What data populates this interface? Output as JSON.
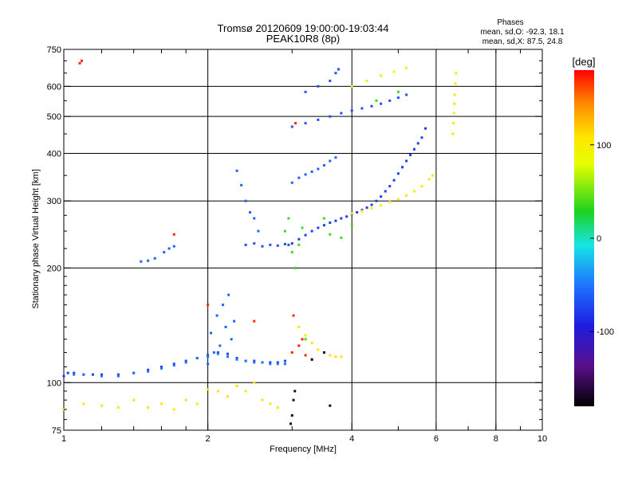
{
  "chart_data": {
    "type": "scatter",
    "title": "Tromsø 20120609 19:00:00-19:03:44",
    "subtitle": "PEAK10R8 (8p)",
    "xlabel": "Frequency [MHz]",
    "ylabel": "Stationary phase Virtual Height [km]",
    "x_scale": "log",
    "y_scale": "log",
    "xlim": [
      1,
      10
    ],
    "ylim": [
      75,
      750
    ],
    "x_ticks": [
      "1",
      "2",
      "4",
      "6",
      "8",
      "10"
    ],
    "x_tick_values": [
      1,
      2,
      4,
      6,
      8,
      10
    ],
    "y_ticks": [
      "75",
      "100",
      "200",
      "300",
      "400",
      "500",
      "600",
      "750"
    ],
    "y_tick_values": [
      75,
      100,
      200,
      300,
      400,
      500,
      600,
      750
    ],
    "grid": true,
    "stats": {
      "heading": "Phases",
      "line_o": "mean, sd,O: -92.3, 18.1",
      "line_x": "mean, sd,X: 87.5, 24.8"
    },
    "colorbar": {
      "label": "[deg]",
      "range": [
        -180,
        180
      ],
      "ticks": [
        "100",
        "0",
        "-100"
      ],
      "tick_values": [
        100,
        0,
        -100
      ]
    },
    "series": [
      {
        "color_phase": -110,
        "x": [
          1.0,
          1.02,
          1.05,
          1.1,
          1.15,
          1.2,
          1.3,
          1.4,
          1.5,
          1.6,
          1.7,
          1.8,
          1.9,
          2.0,
          2.1,
          2.2,
          2.3,
          2.4,
          2.5,
          2.6,
          2.7,
          2.8,
          2.9
        ],
        "y": [
          104,
          106,
          106,
          105,
          105,
          105,
          105,
          106,
          108,
          110,
          112,
          114,
          116,
          118,
          120,
          119,
          116,
          114,
          114,
          113,
          113,
          113,
          114
        ]
      },
      {
        "color_phase": -95,
        "x": [
          1.05,
          1.1,
          1.2,
          1.3,
          1.4,
          1.5,
          1.6,
          1.7,
          1.8,
          1.9,
          2.0,
          2.1,
          2.2,
          2.3,
          2.4,
          2.5,
          2.6,
          2.7,
          2.8,
          2.9
        ],
        "y": [
          105,
          105,
          104,
          104,
          106,
          107,
          109,
          111,
          113,
          116,
          117,
          119,
          117,
          115,
          114,
          113,
          113,
          112,
          112,
          112
        ]
      },
      {
        "color_phase": -100,
        "x": [
          2.0,
          2.03,
          2.06,
          2.09,
          2.12,
          2.15,
          2.18,
          2.21,
          2.24,
          2.27
        ],
        "y": [
          112,
          135,
          120,
          150,
          125,
          160,
          140,
          170,
          130,
          145
        ]
      },
      {
        "color_phase": -105,
        "x": [
          2.4,
          2.5,
          2.6,
          2.7,
          2.8,
          2.9,
          2.95
        ],
        "y": [
          230,
          232,
          228,
          230,
          229,
          231,
          230
        ]
      },
      {
        "color_phase": -100,
        "x": [
          2.3,
          2.35,
          2.4,
          2.45,
          2.5,
          2.55
        ],
        "y": [
          360,
          330,
          300,
          280,
          270,
          250
        ]
      },
      {
        "color_phase": -100,
        "x": [
          1.45,
          1.5,
          1.55,
          1.62,
          1.66,
          1.7
        ],
        "y": [
          208,
          209,
          212,
          220,
          225,
          228
        ]
      },
      {
        "color_phase": -110,
        "x": [
          3.0,
          3.1,
          3.2,
          3.3,
          3.4,
          3.5,
          3.6,
          3.7,
          3.8,
          3.9,
          4.0,
          4.1,
          4.2,
          4.3,
          4.4,
          4.5,
          4.6,
          4.7,
          4.8,
          4.9,
          5.0,
          5.1,
          5.2,
          5.3,
          5.4,
          5.5,
          5.6,
          5.7
        ],
        "y": [
          232,
          238,
          244,
          250,
          255,
          259,
          263,
          266,
          270,
          273,
          277,
          280,
          284,
          288,
          293,
          300,
          308,
          318,
          328,
          340,
          354,
          368,
          382,
          396,
          410,
          425,
          440,
          465
        ]
      },
      {
        "color_phase": 90,
        "x": [
          4.0,
          4.2,
          4.4,
          4.6,
          4.8,
          5.0,
          5.2,
          5.4,
          5.6,
          5.8,
          5.9
        ],
        "y": [
          278,
          282,
          287,
          292,
          298,
          303,
          310,
          318,
          328,
          342,
          350
        ]
      },
      {
        "color_phase": -105,
        "x": [
          3.0,
          3.2,
          3.4,
          3.6,
          3.8,
          4.0,
          4.2,
          4.4,
          4.6,
          4.8,
          5.0,
          5.2
        ],
        "y": [
          470,
          480,
          490,
          500,
          510,
          518,
          525,
          532,
          540,
          550,
          560,
          570
        ]
      },
      {
        "color_phase": -105,
        "x": [
          3.2,
          3.4,
          3.6,
          3.7,
          3.75
        ],
        "y": [
          580,
          600,
          620,
          650,
          665
        ]
      },
      {
        "color_phase": 90,
        "x": [
          4.0,
          4.3,
          4.6,
          4.9,
          5.2
        ],
        "y": [
          600,
          620,
          640,
          655,
          670
        ]
      },
      {
        "color_phase": 100,
        "x": [
          6.5,
          6.52,
          6.54,
          6.55,
          6.56,
          6.58,
          6.6
        ],
        "y": [
          450,
          480,
          510,
          540,
          570,
          610,
          650
        ]
      },
      {
        "color_phase": 100,
        "x": [
          3.1,
          3.2,
          3.3,
          3.4,
          3.5,
          3.6,
          3.7,
          3.8
        ],
        "y": [
          140,
          133,
          127,
          122,
          120,
          118,
          117,
          117
        ]
      },
      {
        "color_phase": -100,
        "x": [
          3.0,
          3.1,
          3.2,
          3.3,
          3.4,
          3.5,
          3.6,
          3.7
        ],
        "y": [
          335,
          345,
          352,
          358,
          364,
          372,
          382,
          390
        ]
      },
      {
        "color_phase": 100,
        "x": [
          1.0,
          1.1,
          1.2,
          1.3,
          1.4,
          1.5,
          1.6,
          1.7,
          1.8,
          1.9,
          2.0,
          2.1,
          2.2,
          2.3,
          2.4,
          2.5,
          2.6,
          2.7,
          2.8
        ],
        "y": [
          85,
          88,
          87,
          86,
          90,
          86,
          88,
          85,
          90,
          88,
          96,
          95,
          92,
          98,
          95,
          100,
          90,
          88,
          86
        ]
      },
      {
        "color_phase": 170,
        "x": [
          1.08,
          1.09,
          1.7,
          2.0,
          2.5,
          3.0,
          3.02,
          3.05,
          3.1,
          3.15,
          3.2,
          3.3
        ],
        "y": [
          690,
          700,
          245,
          160,
          145,
          120,
          150,
          480,
          125,
          130,
          118,
          115
        ]
      },
      {
        "color_phase": -170,
        "x": [
          2.98,
          3.0,
          3.02,
          3.04,
          3.3,
          3.5,
          3.6
        ],
        "y": [
          78,
          82,
          90,
          95,
          115,
          120,
          87
        ]
      },
      {
        "color_phase": 10,
        "x": [
          2.9,
          2.95,
          3.0,
          3.05,
          3.1,
          3.15,
          3.2,
          3.5,
          3.6,
          3.8,
          4.0,
          4.5,
          5.0
        ],
        "y": [
          250,
          270,
          220,
          200,
          230,
          255,
          130,
          270,
          245,
          240,
          260,
          550,
          580
        ]
      }
    ]
  }
}
